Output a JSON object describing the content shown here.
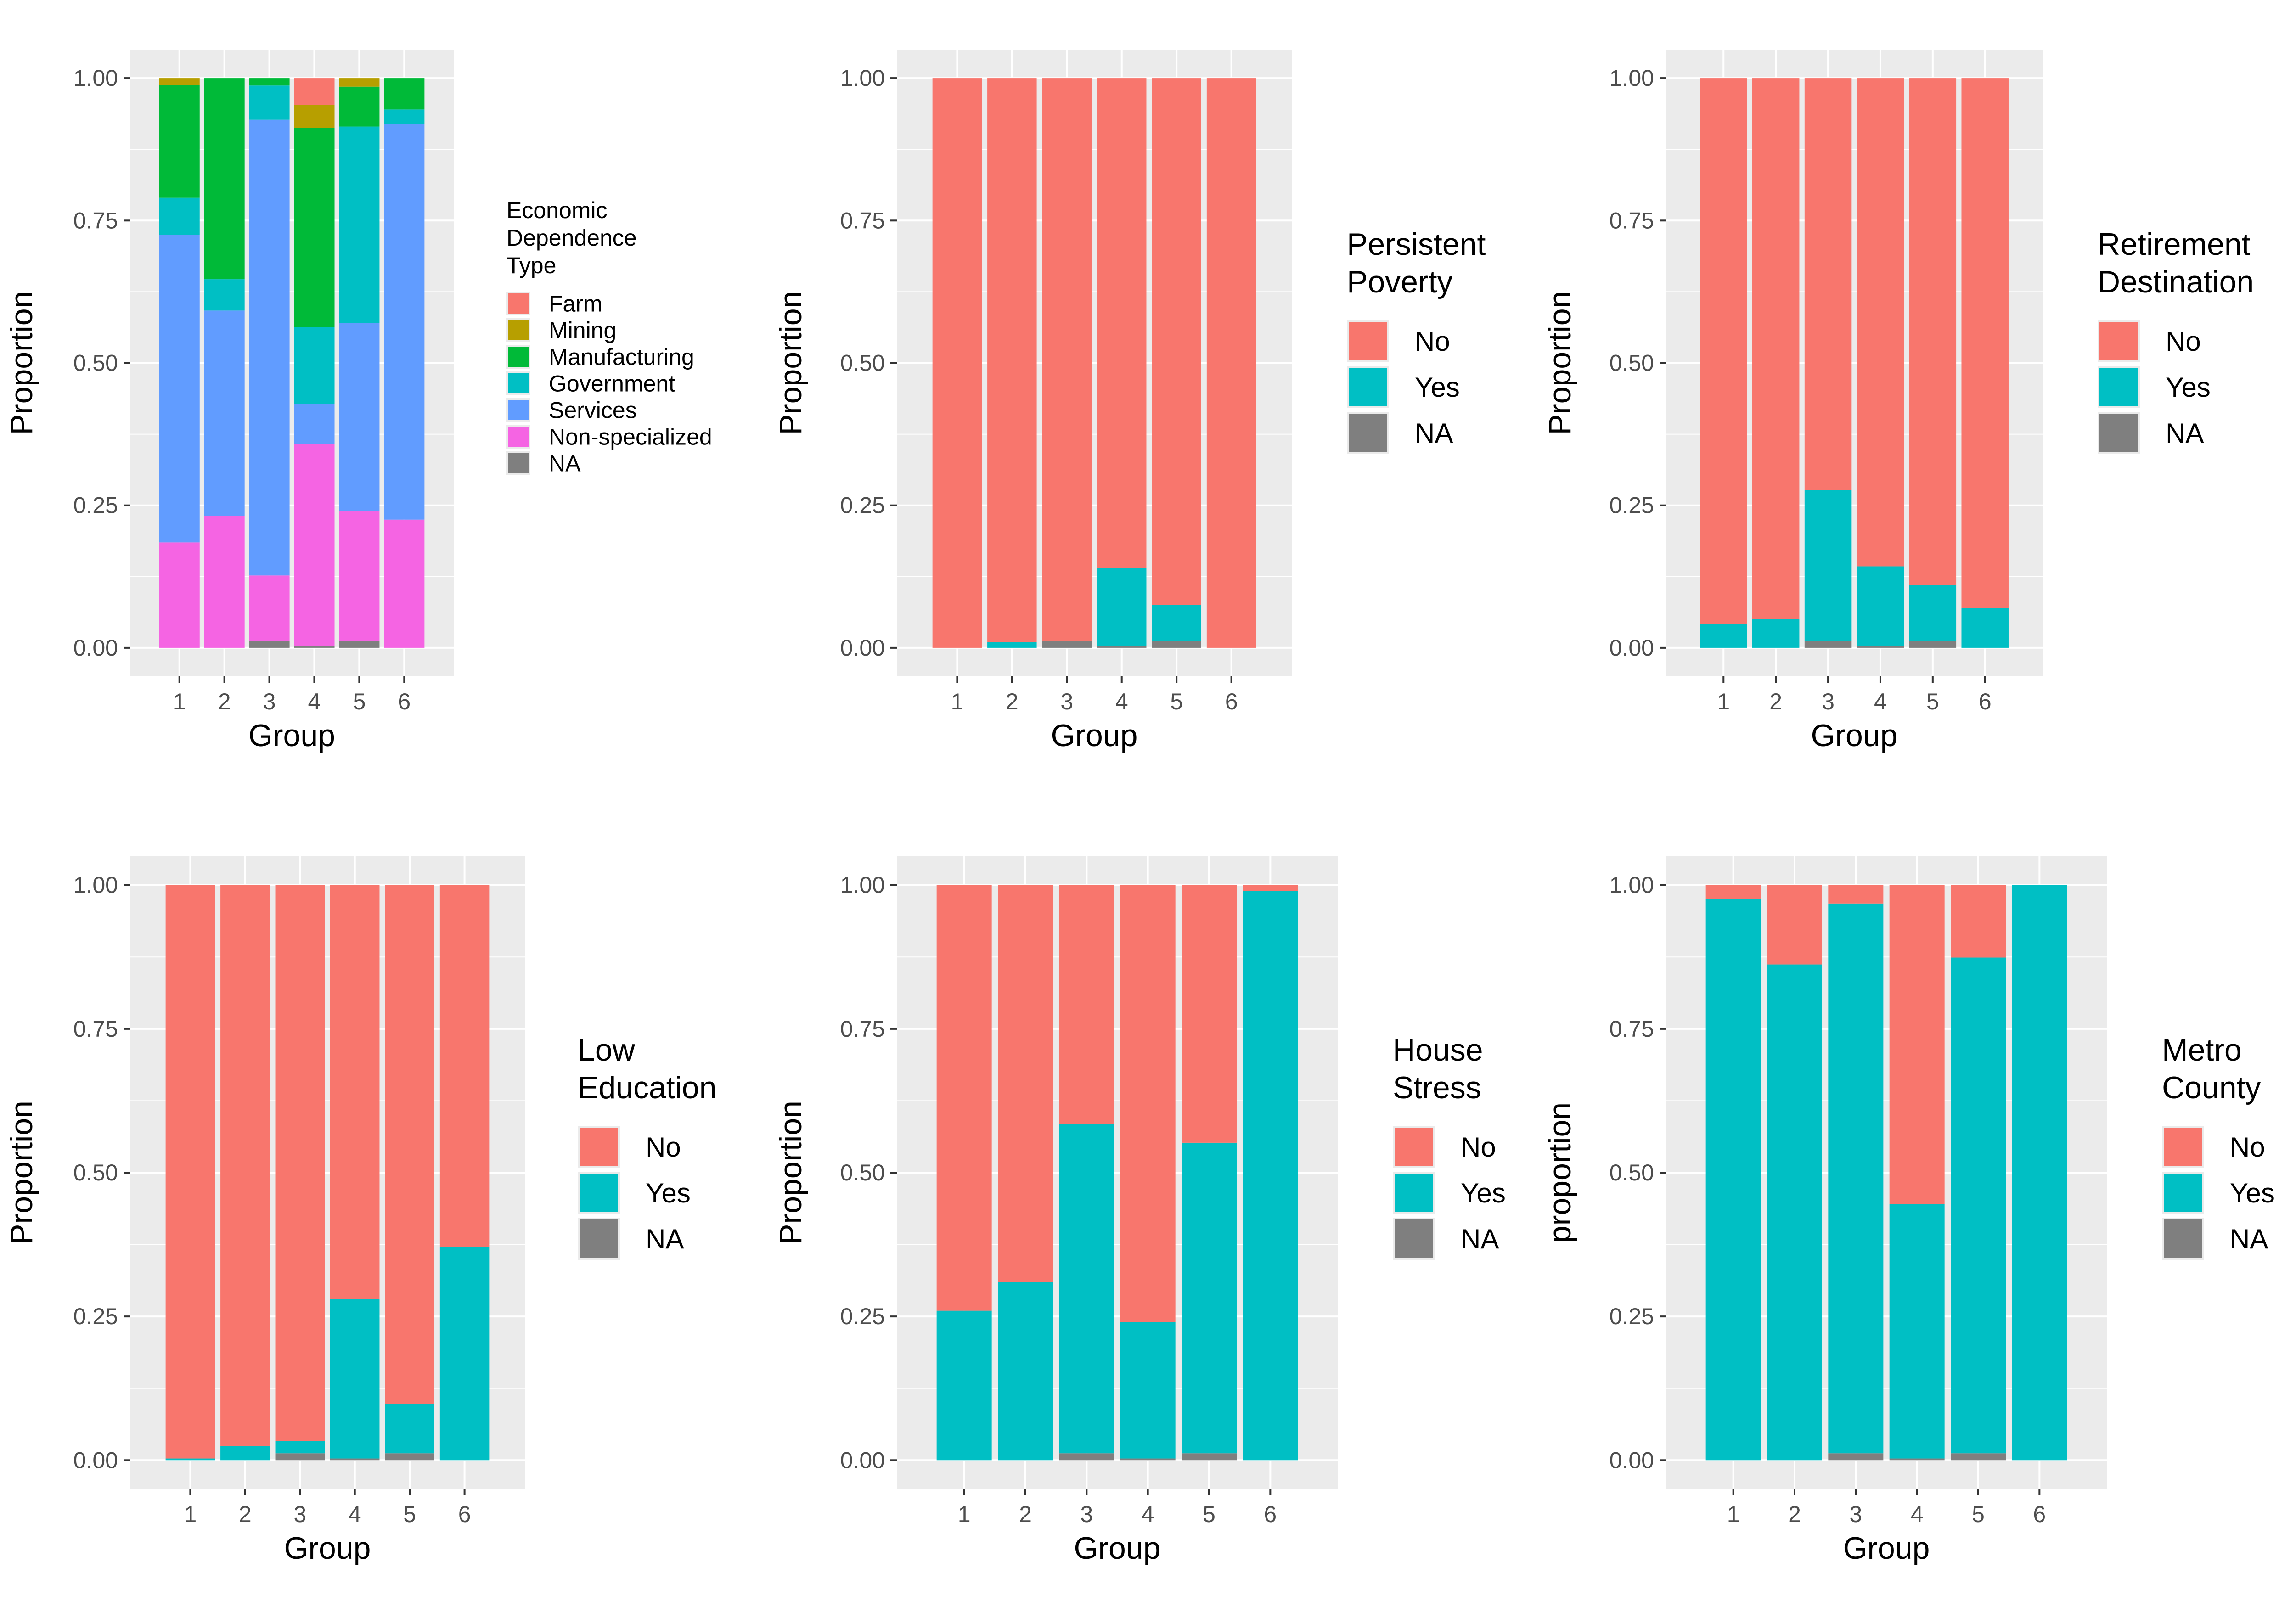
{
  "colors": {
    "Farm": "#F8766D",
    "Mining": "#B79F00",
    "Manufacturing": "#00BA38",
    "Government": "#00BFC4",
    "Services": "#619CFF",
    "Non-specialized": "#F564E3",
    "No": "#F8766D",
    "Yes": "#00BFC4",
    "NA": "#7F7F7F",
    "panel_bg": "#EBEBEB",
    "grid": "#FFFFFF"
  },
  "chart_data": [
    {
      "type": "bar",
      "stacked": true,
      "xlabel": "Group",
      "ylabel": "Proportion",
      "categories": [
        "1",
        "2",
        "3",
        "4",
        "5",
        "6"
      ],
      "ylim": [
        0,
        1
      ],
      "yticks": [
        "0.00",
        "0.25",
        "0.50",
        "0.75",
        "1.00"
      ],
      "legend_title": [
        "Economic",
        "Dependence",
        "Type"
      ],
      "legend_entries": [
        "Farm",
        "Mining",
        "Manufacturing",
        "Government",
        "Services",
        "Non-specialized",
        "NA"
      ],
      "series": [
        {
          "name": "NA",
          "values": [
            0.0,
            0.0,
            0.012,
            0.003,
            0.012,
            0.0
          ]
        },
        {
          "name": "Non-specialized",
          "values": [
            0.185,
            0.232,
            0.115,
            0.355,
            0.228,
            0.225
          ]
        },
        {
          "name": "Services",
          "values": [
            0.54,
            0.36,
            0.8,
            0.07,
            0.33,
            0.695
          ]
        },
        {
          "name": "Government",
          "values": [
            0.065,
            0.055,
            0.06,
            0.135,
            0.345,
            0.025
          ]
        },
        {
          "name": "Manufacturing",
          "values": [
            0.198,
            0.353,
            0.013,
            0.35,
            0.07,
            0.055
          ]
        },
        {
          "name": "Mining",
          "values": [
            0.012,
            0.0,
            0.0,
            0.04,
            0.015,
            0.0
          ]
        },
        {
          "name": "Farm",
          "values": [
            0.0,
            0.0,
            0.0,
            0.047,
            0.0,
            0.0
          ]
        }
      ]
    },
    {
      "type": "bar",
      "stacked": true,
      "xlabel": "Group",
      "ylabel": "Proportion",
      "categories": [
        "1",
        "2",
        "3",
        "4",
        "5",
        "6"
      ],
      "ylim": [
        0,
        1
      ],
      "yticks": [
        "0.00",
        "0.25",
        "0.50",
        "0.75",
        "1.00"
      ],
      "legend_title": [
        "Persistent",
        "Poverty"
      ],
      "legend_entries": [
        "No",
        "Yes",
        "NA"
      ],
      "series": [
        {
          "name": "NA",
          "values": [
            0.0,
            0.0,
            0.012,
            0.003,
            0.012,
            0.0
          ]
        },
        {
          "name": "Yes",
          "values": [
            0.0,
            0.01,
            0.0,
            0.137,
            0.063,
            0.0
          ]
        },
        {
          "name": "No",
          "values": [
            1.0,
            0.99,
            0.988,
            0.86,
            0.925,
            1.0
          ]
        }
      ]
    },
    {
      "type": "bar",
      "stacked": true,
      "xlabel": "Group",
      "ylabel": "Proportion",
      "categories": [
        "1",
        "2",
        "3",
        "4",
        "5",
        "6"
      ],
      "ylim": [
        0,
        1
      ],
      "yticks": [
        "0.00",
        "0.25",
        "0.50",
        "0.75",
        "1.00"
      ],
      "legend_title": [
        "Retirement",
        "Destination"
      ],
      "legend_entries": [
        "No",
        "Yes",
        "NA"
      ],
      "series": [
        {
          "name": "NA",
          "values": [
            0.0,
            0.0,
            0.012,
            0.003,
            0.012,
            0.0
          ]
        },
        {
          "name": "Yes",
          "values": [
            0.042,
            0.05,
            0.265,
            0.14,
            0.098,
            0.07
          ]
        },
        {
          "name": "No",
          "values": [
            0.958,
            0.95,
            0.723,
            0.857,
            0.89,
            0.93
          ]
        }
      ]
    },
    {
      "type": "bar",
      "stacked": true,
      "xlabel": "Group",
      "ylabel": "Proportion",
      "categories": [
        "1",
        "2",
        "3",
        "4",
        "5",
        "6"
      ],
      "ylim": [
        0,
        1
      ],
      "yticks": [
        "0.00",
        "0.25",
        "0.50",
        "0.75",
        "1.00"
      ],
      "legend_title": [
        "Low",
        "Education"
      ],
      "legend_entries": [
        "No",
        "Yes",
        "NA"
      ],
      "series": [
        {
          "name": "NA",
          "values": [
            0.0,
            0.0,
            0.012,
            0.003,
            0.012,
            0.0
          ]
        },
        {
          "name": "Yes",
          "values": [
            0.003,
            0.025,
            0.021,
            0.277,
            0.086,
            0.37
          ]
        },
        {
          "name": "No",
          "values": [
            0.997,
            0.975,
            0.967,
            0.72,
            0.902,
            0.63
          ]
        }
      ]
    },
    {
      "type": "bar",
      "stacked": true,
      "xlabel": "Group",
      "ylabel": "Proportion",
      "categories": [
        "1",
        "2",
        "3",
        "4",
        "5",
        "6"
      ],
      "ylim": [
        0,
        1
      ],
      "yticks": [
        "0.00",
        "0.25",
        "0.50",
        "0.75",
        "1.00"
      ],
      "legend_title": [
        "House",
        "Stress"
      ],
      "legend_entries": [
        "No",
        "Yes",
        "NA"
      ],
      "series": [
        {
          "name": "NA",
          "values": [
            0.0,
            0.0,
            0.012,
            0.003,
            0.012,
            0.0
          ]
        },
        {
          "name": "Yes",
          "values": [
            0.26,
            0.31,
            0.573,
            0.237,
            0.54,
            0.99
          ]
        },
        {
          "name": "No",
          "values": [
            0.74,
            0.69,
            0.415,
            0.76,
            0.448,
            0.01
          ]
        }
      ]
    },
    {
      "type": "bar",
      "stacked": true,
      "xlabel": "Group",
      "ylabel": "proportion",
      "categories": [
        "1",
        "2",
        "3",
        "4",
        "5",
        "6"
      ],
      "ylim": [
        0,
        1
      ],
      "yticks": [
        "0.00",
        "0.25",
        "0.50",
        "0.75",
        "1.00"
      ],
      "legend_title": [
        "Metro",
        "County"
      ],
      "legend_entries": [
        "No",
        "Yes",
        "NA"
      ],
      "series": [
        {
          "name": "NA",
          "values": [
            0.0,
            0.0,
            0.012,
            0.003,
            0.012,
            0.0
          ]
        },
        {
          "name": "Yes",
          "values": [
            0.976,
            0.862,
            0.956,
            0.442,
            0.862,
            1.0
          ]
        },
        {
          "name": "No",
          "values": [
            0.024,
            0.138,
            0.032,
            0.555,
            0.126,
            0.0
          ]
        }
      ]
    }
  ]
}
